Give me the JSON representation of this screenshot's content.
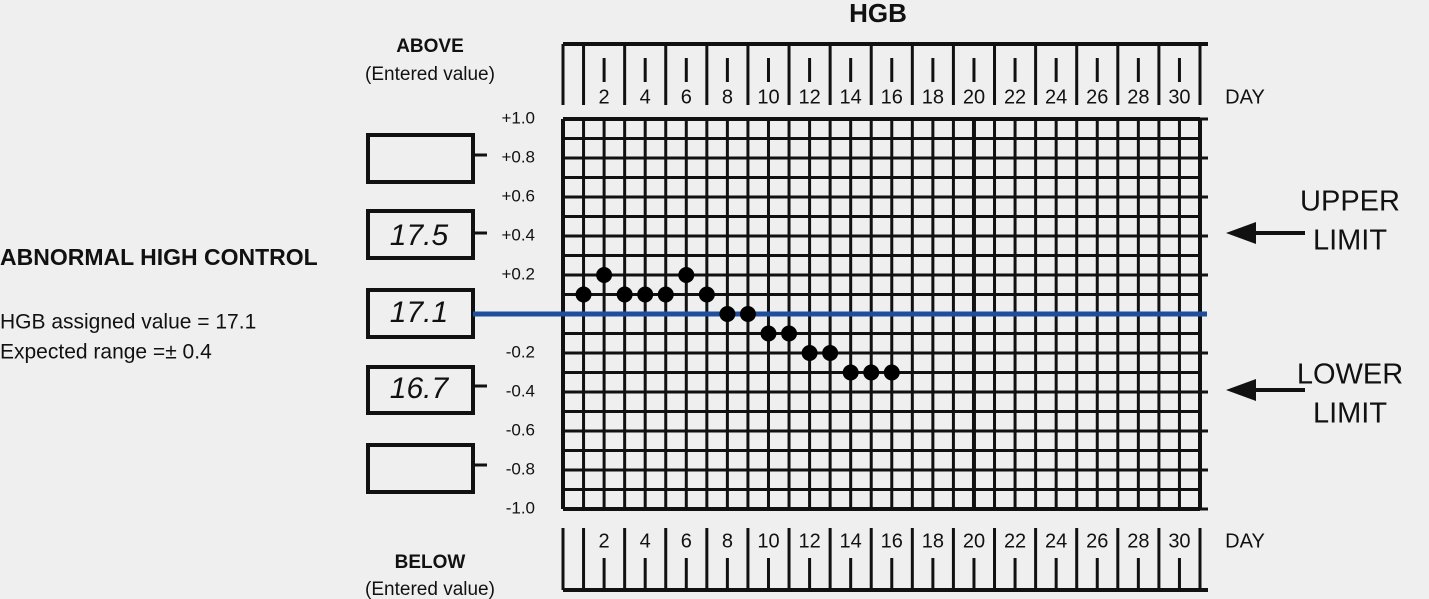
{
  "chart_data": {
    "type": "scatter",
    "title": "HGB",
    "x": [
      1,
      2,
      3,
      4,
      5,
      6,
      7,
      8,
      9,
      10,
      11,
      12,
      13,
      14,
      15,
      16
    ],
    "values": [
      0.1,
      0.2,
      0.1,
      0.1,
      0.1,
      0.2,
      0.1,
      0,
      0,
      -0.1,
      -0.1,
      -0.2,
      -0.2,
      -0.3,
      -0.3,
      -0.3
    ],
    "color": "#000000",
    "xlim": [
      0,
      31
    ],
    "ylim": [
      -1,
      1
    ],
    "xticks": [
      2,
      4,
      6,
      8,
      10,
      12,
      14,
      16,
      18,
      20,
      22,
      24,
      26,
      28,
      30
    ],
    "yticks": [
      {
        "value": 1,
        "label": "+1.0"
      },
      {
        "value": 0.8,
        "label": "+0.8"
      },
      {
        "value": 0.6,
        "label": "+0.6"
      },
      {
        "value": 0.4,
        "label": "+0.4"
      },
      {
        "value": 0.2,
        "label": "+0.2"
      },
      -0.2,
      -0.4,
      -0.6,
      -0.8,
      {
        "value": -1,
        "label": "-1.0"
      }
    ],
    "x_axis_label": "DAY",
    "reference_line": {
      "value": 0,
      "color": "#1f4e9c"
    },
    "above_label": "ABOVE",
    "above_sublabel": "(Entered value)",
    "below_label": "BELOW",
    "below_sublabel": "(Entered value)",
    "entered_values": [
      "17.5",
      "17.1",
      "16.7"
    ],
    "upper_limit_label": [
      "UPPER",
      "LIMIT"
    ],
    "lower_limit_label": [
      "LOWER",
      "LIMIT"
    ],
    "control": {
      "title": "ABNORMAL HIGH CONTROL",
      "lines": [
        "HGB assigned value = 17.1",
        "Expected range =± 0.4"
      ]
    }
  }
}
